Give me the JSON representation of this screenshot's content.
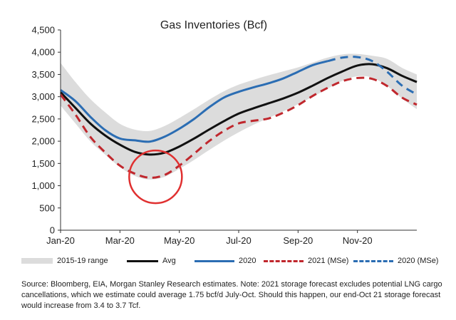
{
  "chart_data": {
    "type": "line",
    "title": "Gas Inventories (Bcf)",
    "x_ticks": [
      "Jan-20",
      "Mar-20",
      "May-20",
      "Jul-20",
      "Sep-20",
      "Nov-20"
    ],
    "y_ticks": [
      "0",
      "500",
      "1,000",
      "1,500",
      "2,000",
      "2,500",
      "3,000",
      "3,500",
      "4,000",
      "4,500"
    ],
    "ylim": [
      0,
      4500
    ],
    "xlim": [
      0,
      12
    ],
    "x_unit": "months from Jan-20",
    "band": {
      "name": "2015-19 range",
      "color": "#dcdcdc",
      "x": [
        0,
        0.5,
        1,
        1.5,
        2,
        2.5,
        3,
        3.5,
        4,
        4.5,
        5,
        5.5,
        6,
        6.5,
        7,
        7.5,
        8,
        8.5,
        9,
        9.5,
        10,
        10.5,
        11,
        11.5,
        12
      ],
      "lo": [
        2800,
        2400,
        2000,
        1700,
        1420,
        1220,
        1140,
        1200,
        1380,
        1580,
        1800,
        2010,
        2200,
        2370,
        2520,
        2670,
        2830,
        3000,
        3180,
        3360,
        3460,
        3430,
        3240,
        2960,
        2720
      ],
      "hi": [
        3760,
        3330,
        2950,
        2650,
        2390,
        2260,
        2230,
        2340,
        2520,
        2720,
        2930,
        3120,
        3270,
        3380,
        3480,
        3570,
        3660,
        3770,
        3880,
        3950,
        3960,
        3920,
        3850,
        3650,
        3500
      ]
    },
    "series": [
      {
        "name": "Avg",
        "color": "#111111",
        "dash": "solid",
        "x": [
          0,
          0.5,
          1,
          1.5,
          2,
          2.5,
          3,
          3.5,
          4,
          4.5,
          5,
          5.5,
          6,
          6.5,
          7,
          7.5,
          8,
          8.5,
          9,
          9.5,
          10,
          10.5,
          11,
          11.5,
          12
        ],
        "y": [
          3100,
          2750,
          2400,
          2130,
          1920,
          1760,
          1700,
          1740,
          1880,
          2060,
          2260,
          2450,
          2620,
          2740,
          2850,
          2960,
          3090,
          3250,
          3420,
          3570,
          3700,
          3730,
          3640,
          3470,
          3330
        ]
      },
      {
        "name": "2020",
        "color": "#2b6db3",
        "dash": "solid",
        "x": [
          0,
          0.5,
          1,
          1.5,
          2,
          2.5,
          3,
          3.5,
          4,
          4.5,
          5,
          5.5,
          6,
          6.5,
          7,
          7.5,
          8,
          8.5,
          9
        ],
        "y": [
          3150,
          2900,
          2550,
          2250,
          2060,
          2020,
          1990,
          2100,
          2280,
          2500,
          2760,
          2980,
          3110,
          3210,
          3300,
          3410,
          3560,
          3710,
          3800
        ]
      },
      {
        "name": "2021 (MSe)",
        "color": "#c0272d",
        "dash": "dashed",
        "x": [
          0,
          0.5,
          1,
          1.5,
          2,
          2.5,
          3,
          3.5,
          4,
          4.5,
          5,
          5.5,
          6,
          6.5,
          7,
          7.5,
          8,
          8.5,
          9,
          9.5,
          10,
          10.5,
          11,
          11.5,
          12
        ],
        "y": [
          3050,
          2600,
          2100,
          1750,
          1450,
          1270,
          1180,
          1240,
          1450,
          1720,
          2000,
          2230,
          2400,
          2460,
          2510,
          2640,
          2810,
          3020,
          3200,
          3350,
          3420,
          3400,
          3240,
          2980,
          2820
        ]
      },
      {
        "name": "2020 (MSe)",
        "color": "#2b6db3",
        "dash": "dashed",
        "x": [
          9,
          9.5,
          10,
          10.5,
          11,
          11.5,
          12
        ],
        "y": [
          3800,
          3880,
          3890,
          3800,
          3560,
          3250,
          3050
        ]
      }
    ],
    "annotation": {
      "type": "circle",
      "color": "#e03030",
      "x": 3.2,
      "y": 1200
    },
    "grid": false,
    "legend_position": "bottom",
    "legend": [
      "2015-19 range",
      "Avg",
      "2020",
      "2021 (MSe)",
      "2020 (MSe)"
    ]
  },
  "note": "Source: Bloomberg, EIA, Morgan Stanley Research estimates. Note: 2021 storage forecast excludes potential LNG cargo cancellations, which we estimate could average 1.75 bcf/d July-Oct. Should this happen, our end-Oct 21 storage forecast would increase from 3.4 to 3.7 Tcf."
}
